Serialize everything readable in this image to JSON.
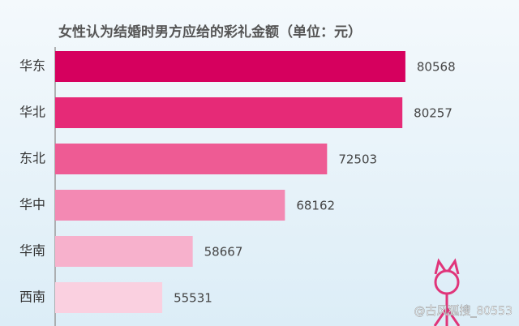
{
  "chart_data": {
    "type": "hbar",
    "title": "女性认为结婚时男方应给的彩礼金额（单位：元）",
    "categories": [
      "华东",
      "华北",
      "东北",
      "华中",
      "华南",
      "西南"
    ],
    "values": [
      80568,
      80257,
      72503,
      68162,
      58667,
      55531
    ],
    "colors": [
      "#d6005e",
      "#e62a77",
      "#ee5b94",
      "#f389b3",
      "#f7b1cc",
      "#fad0e0"
    ],
    "xlim": [
      44500,
      84000
    ]
  },
  "watermark": "@古风狐搜_80553"
}
